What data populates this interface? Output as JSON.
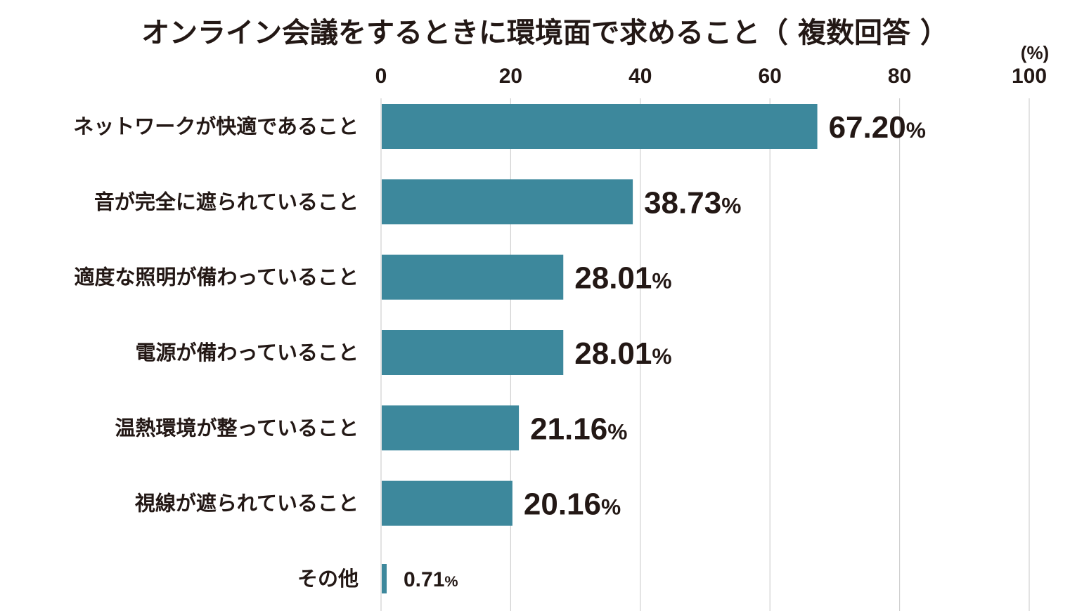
{
  "chart_data": {
    "type": "bar",
    "orientation": "horizontal",
    "title": "オンライン会議をするときに環境面で求めること（ 複数回答 ）",
    "unit_label": "(%)",
    "xlim": [
      0,
      100
    ],
    "ticks": [
      "0",
      "20",
      "40",
      "60",
      "80",
      "100"
    ],
    "grid": true,
    "bar_color": "#3d889c",
    "categories": [
      "ネットワークが快適であること",
      "音が完全に遮られていること",
      "適度な照明が備わっていること",
      "電源が備わっていること",
      "温熱環境が整っていること",
      "視線が遮られていること",
      "その他"
    ],
    "values": [
      67.2,
      38.73,
      28.01,
      28.01,
      21.16,
      20.16,
      0.71
    ],
    "value_labels": [
      "67.20",
      "38.73",
      "28.01",
      "28.01",
      "21.16",
      "20.16",
      "0.71"
    ],
    "value_suffix": "%"
  }
}
